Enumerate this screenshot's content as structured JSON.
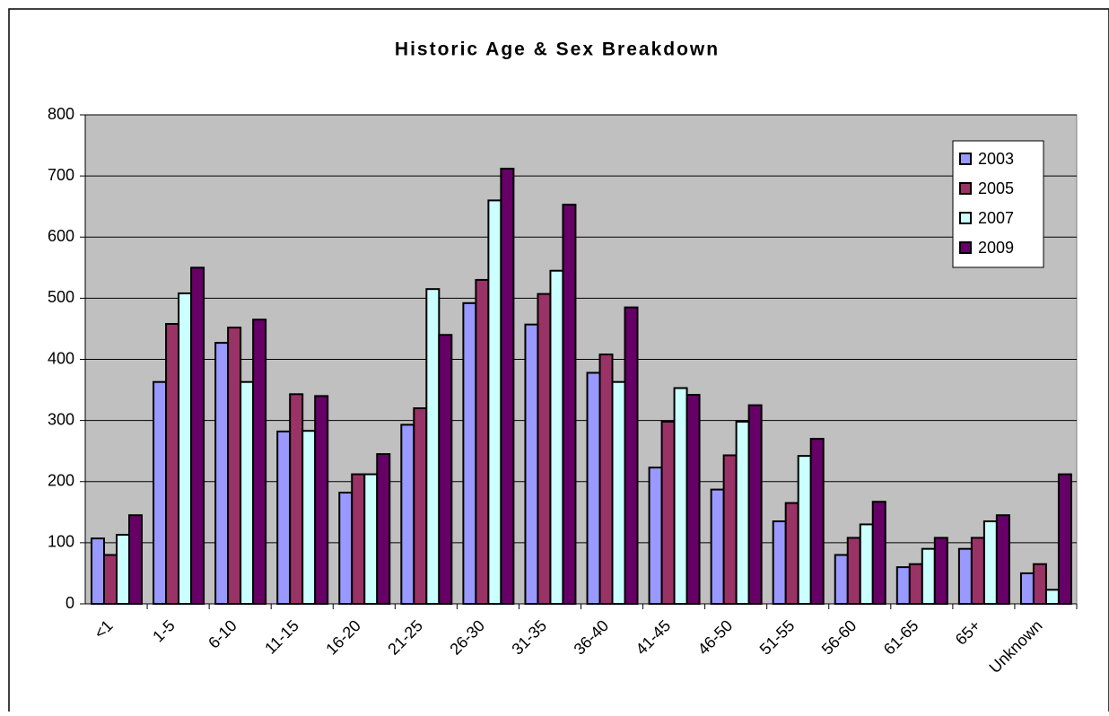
{
  "chart_data": {
    "type": "bar",
    "title": "Historic Age & Sex Breakdown",
    "categories": [
      "<1",
      "1-5",
      "6-10",
      "11-15",
      "16-20",
      "21-25",
      "26-30",
      "31-35",
      "36-40",
      "41-45",
      "46-50",
      "51-55",
      "56-60",
      "61-65",
      "65+",
      "Unknown"
    ],
    "series": [
      {
        "name": "2003",
        "color": "#9999ff",
        "values": [
          107,
          363,
          427,
          282,
          182,
          293,
          492,
          457,
          378,
          223,
          187,
          135,
          80,
          60,
          90,
          50
        ]
      },
      {
        "name": "2005",
        "color": "#993366",
        "values": [
          80,
          458,
          452,
          343,
          212,
          320,
          530,
          507,
          408,
          298,
          243,
          165,
          108,
          65,
          108,
          65
        ]
      },
      {
        "name": "2007",
        "color": "#ccffff",
        "values": [
          113,
          508,
          363,
          283,
          212,
          515,
          660,
          545,
          363,
          353,
          298,
          242,
          130,
          90,
          135,
          23
        ]
      },
      {
        "name": "2009",
        "color": "#660066",
        "values": [
          145,
          550,
          465,
          340,
          245,
          440,
          712,
          653,
          485,
          342,
          325,
          270,
          167,
          108,
          145,
          212
        ]
      }
    ],
    "ylim": [
      0,
      800
    ],
    "yticks": [
      0,
      100,
      200,
      300,
      400,
      500,
      600,
      700,
      800
    ],
    "grid": true,
    "legend": "top-right"
  }
}
